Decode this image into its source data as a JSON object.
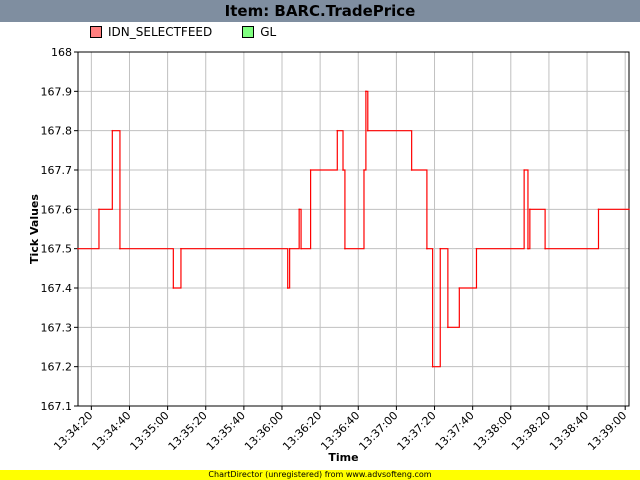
{
  "title": "Item: BARC.TradePrice",
  "legend": [
    {
      "label": "IDN_SELECTFEED",
      "color": "#ff7f7f"
    },
    {
      "label": "GL",
      "color": "#80ff80"
    }
  ],
  "footer": "ChartDirector (unregistered) from www.advsofteng.com",
  "chart_data": {
    "type": "line",
    "title": "Item: BARC.TradePrice",
    "xlabel": "Time",
    "ylabel": "Tick Values",
    "ylim": [
      167.1,
      168
    ],
    "xlim": [
      "13:34:13",
      "13:39:02"
    ],
    "yticks": [
      "167.1",
      "167.2",
      "167.3",
      "167.4",
      "167.5",
      "167.6",
      "167.7",
      "167.8",
      "167.9",
      "168"
    ],
    "xticks": [
      "13:34:20",
      "13:34:40",
      "13:35:00",
      "13:35:20",
      "13:35:40",
      "13:36:00",
      "13:36:20",
      "13:36:40",
      "13:37:00",
      "13:37:20",
      "13:37:40",
      "13:38:00",
      "13:38:20",
      "13:38:40",
      "13:39:00"
    ],
    "grid": true,
    "legend_position": "top-left",
    "series": [
      {
        "name": "IDN_SELECTFEED",
        "color": "#ff0000",
        "step": true,
        "points": [
          [
            "13:34:13",
            167.5
          ],
          [
            "13:34:24",
            167.6
          ],
          [
            "13:34:31",
            167.8
          ],
          [
            "13:34:35",
            167.5
          ],
          [
            "13:35:03",
            167.4
          ],
          [
            "13:35:07",
            167.5
          ],
          [
            "13:36:03",
            167.4
          ],
          [
            "13:36:04",
            167.5
          ],
          [
            "13:36:09",
            167.6
          ],
          [
            "13:36:10",
            167.5
          ],
          [
            "13:36:15",
            167.7
          ],
          [
            "13:36:29",
            167.8
          ],
          [
            "13:36:32",
            167.7
          ],
          [
            "13:36:33",
            167.5
          ],
          [
            "13:36:43",
            167.7
          ],
          [
            "13:36:44",
            167.9
          ],
          [
            "13:36:45",
            167.8
          ],
          [
            "13:37:08",
            167.7
          ],
          [
            "13:37:16",
            167.5
          ],
          [
            "13:37:19",
            167.2
          ],
          [
            "13:37:23",
            167.5
          ],
          [
            "13:37:27",
            167.3
          ],
          [
            "13:37:33",
            167.4
          ],
          [
            "13:37:42",
            167.5
          ],
          [
            "13:38:07",
            167.7
          ],
          [
            "13:38:09",
            167.5
          ],
          [
            "13:38:10",
            167.6
          ],
          [
            "13:38:18",
            167.5
          ],
          [
            "13:38:46",
            167.6
          ],
          [
            "13:39:02",
            167.6
          ]
        ]
      },
      {
        "name": "GL",
        "color": "#00c000",
        "points": []
      }
    ]
  }
}
